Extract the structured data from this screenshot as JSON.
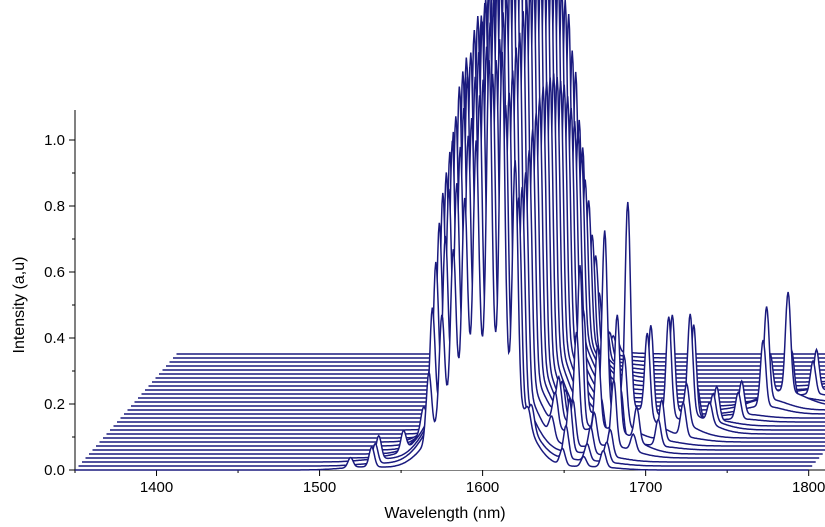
{
  "chart_data": {
    "type": "line",
    "style": "waterfall-3d",
    "xlabel": "Wavelength (nm)",
    "ylabel": "Intensity (a,u)",
    "xlim": [
      1350,
      1810
    ],
    "ylim": [
      0.0,
      1.1
    ],
    "x_ticks": [
      1400,
      1500,
      1600,
      1700,
      1800
    ],
    "y_ticks": [
      0.0,
      0.2,
      0.4,
      0.6,
      0.8,
      1.0
    ],
    "x_tick_labels": [
      "1400",
      "1500",
      "1600",
      "1700",
      "1800"
    ],
    "y_tick_labels": [
      "0.0",
      "0.2",
      "0.4",
      "0.6",
      "0.8",
      "1.0"
    ],
    "series_count": 30,
    "baseline_range": [
      1350,
      1800
    ],
    "line_color": "#1a1a7e",
    "grid": false,
    "legend": "none",
    "series": [
      {
        "peaks": [
          [
            1519,
            0.03
          ],
          [
            1532,
            0.06
          ],
          [
            1567,
            0.2
          ],
          [
            1575,
            0.31
          ],
          [
            1582,
            0.45
          ],
          [
            1589,
            0.55
          ],
          [
            1596,
            0.68
          ],
          [
            1604,
            0.9
          ],
          [
            1612,
            0.95
          ],
          [
            1620,
            0.7
          ],
          [
            1628,
            0.05
          ],
          [
            1649,
            0.05
          ],
          [
            1662,
            0.03
          ],
          [
            1674,
            0.05
          ]
        ]
      },
      {
        "peaks": [
          [
            1532,
            0.06
          ],
          [
            1567,
            0.34
          ],
          [
            1575,
            0.48
          ],
          [
            1582,
            0.58
          ],
          [
            1589,
            0.68
          ],
          [
            1596,
            0.78
          ],
          [
            1604,
            0.85
          ],
          [
            1612,
            0.8
          ],
          [
            1620,
            0.6
          ],
          [
            1628,
            0.06
          ],
          [
            1649,
            0.1
          ],
          [
            1662,
            0.05
          ],
          [
            1674,
            0.06
          ]
        ]
      },
      {
        "peaks": [
          [
            1532,
            0.07
          ],
          [
            1567,
            0.44
          ],
          [
            1575,
            0.58
          ],
          [
            1582,
            0.65
          ],
          [
            1589,
            0.7
          ],
          [
            1596,
            0.8
          ],
          [
            1604,
            0.87
          ],
          [
            1612,
            0.82
          ],
          [
            1620,
            0.62
          ],
          [
            1649,
            0.16
          ],
          [
            1662,
            0.08
          ],
          [
            1674,
            0.08
          ]
        ]
      },
      {
        "peaks": [
          [
            1545,
            0.06
          ],
          [
            1567,
            0.52
          ],
          [
            1575,
            0.68
          ],
          [
            1582,
            0.72
          ],
          [
            1589,
            0.78
          ],
          [
            1596,
            0.86
          ],
          [
            1604,
            0.9
          ],
          [
            1612,
            0.86
          ],
          [
            1620,
            0.64
          ],
          [
            1636,
            0.06
          ],
          [
            1649,
            0.14
          ],
          [
            1662,
            0.1
          ],
          [
            1674,
            0.2
          ],
          [
            1686,
            0.05
          ]
        ]
      },
      {
        "peaks": [
          [
            1555,
            0.06
          ],
          [
            1567,
            0.58
          ],
          [
            1575,
            0.72
          ],
          [
            1582,
            0.78
          ],
          [
            1589,
            0.82
          ],
          [
            1596,
            0.9
          ],
          [
            1604,
            0.95
          ],
          [
            1612,
            0.9
          ],
          [
            1620,
            0.68
          ],
          [
            1636,
            0.1
          ],
          [
            1649,
            0.3
          ],
          [
            1662,
            0.25
          ],
          [
            1674,
            0.35
          ],
          [
            1686,
            0.1
          ]
        ]
      },
      {
        "peaks": [
          [
            1567,
            0.62
          ],
          [
            1575,
            0.78
          ],
          [
            1582,
            0.82
          ],
          [
            1589,
            0.88
          ],
          [
            1596,
            0.93
          ],
          [
            1604,
            0.98
          ],
          [
            1612,
            0.92
          ],
          [
            1620,
            0.72
          ],
          [
            1636,
            0.12
          ],
          [
            1649,
            0.48
          ],
          [
            1662,
            0.1
          ],
          [
            1674,
            0.15
          ],
          [
            1697,
            0.08
          ]
        ]
      },
      {
        "peaks": [
          [
            1567,
            0.66
          ],
          [
            1575,
            0.8
          ],
          [
            1582,
            0.86
          ],
          [
            1589,
            0.92
          ],
          [
            1596,
            0.96
          ],
          [
            1604,
            1.02
          ],
          [
            1612,
            0.96
          ],
          [
            1620,
            0.75
          ],
          [
            1636,
            0.1
          ],
          [
            1649,
            0.32
          ],
          [
            1662,
            0.55
          ],
          [
            1674,
            0.2
          ],
          [
            1697,
            0.12
          ]
        ]
      },
      {
        "peaks": [
          [
            1567,
            0.7
          ],
          [
            1575,
            0.82
          ],
          [
            1582,
            0.88
          ],
          [
            1589,
            0.94
          ],
          [
            1596,
            0.98
          ],
          [
            1604,
            1.02
          ],
          [
            1612,
            0.98
          ],
          [
            1620,
            0.78
          ],
          [
            1636,
            0.08
          ],
          [
            1649,
            0.1
          ],
          [
            1662,
            0.18
          ],
          [
            1674,
            0.62
          ],
          [
            1686,
            0.25
          ],
          [
            1708,
            0.1
          ]
        ]
      },
      {
        "peaks": [
          [
            1575,
            0.84
          ],
          [
            1582,
            0.9
          ],
          [
            1589,
            0.96
          ],
          [
            1596,
            1.0
          ],
          [
            1604,
            1.04
          ],
          [
            1612,
            1.0
          ],
          [
            1620,
            0.8
          ],
          [
            1662,
            0.1
          ],
          [
            1686,
            0.28
          ],
          [
            1697,
            0.3
          ],
          [
            1708,
            0.12
          ]
        ]
      },
      {
        "peaks": [
          [
            1575,
            0.85
          ],
          [
            1582,
            0.92
          ],
          [
            1589,
            0.97
          ],
          [
            1596,
            1.01
          ],
          [
            1604,
            1.05
          ],
          [
            1612,
            1.02
          ],
          [
            1620,
            0.8
          ],
          [
            1697,
            0.3
          ],
          [
            1708,
            0.3
          ],
          [
            1720,
            0.06
          ]
        ]
      },
      {
        "peaks": [
          [
            1575,
            0.86
          ],
          [
            1582,
            0.93
          ],
          [
            1589,
            0.98
          ],
          [
            1596,
            1.02
          ],
          [
            1604,
            1.06
          ],
          [
            1612,
            1.02
          ],
          [
            1620,
            0.8
          ],
          [
            1708,
            0.28
          ],
          [
            1720,
            0.08
          ]
        ]
      },
      {
        "peaks": [
          [
            1582,
            0.94
          ],
          [
            1589,
            0.98
          ],
          [
            1596,
            1.03
          ],
          [
            1604,
            1.06
          ],
          [
            1612,
            1.02
          ],
          [
            1620,
            0.8
          ],
          [
            1708,
            0.1
          ],
          [
            1720,
            0.1
          ]
        ]
      },
      {
        "peaks": [
          [
            1582,
            0.94
          ],
          [
            1589,
            0.98
          ],
          [
            1596,
            1.03
          ],
          [
            1604,
            1.06
          ],
          [
            1612,
            1.02
          ],
          [
            1620,
            0.78
          ],
          [
            1731,
            0.08
          ]
        ]
      },
      {
        "peaks": [
          [
            1582,
            0.94
          ],
          [
            1589,
            0.98
          ],
          [
            1596,
            1.02
          ],
          [
            1604,
            1.06
          ],
          [
            1612,
            1.0
          ],
          [
            1620,
            0.76
          ],
          [
            1731,
            0.1
          ]
        ]
      },
      {
        "peaks": [
          [
            1589,
            0.98
          ],
          [
            1596,
            1.02
          ],
          [
            1604,
            1.06
          ],
          [
            1612,
            1.0
          ],
          [
            1620,
            0.74
          ],
          [
            1742,
            0.2
          ]
        ]
      },
      {
        "peaks": [
          [
            1589,
            0.97
          ],
          [
            1596,
            1.01
          ],
          [
            1604,
            1.05
          ],
          [
            1612,
            0.98
          ],
          [
            1620,
            0.7
          ],
          [
            1742,
            0.28
          ]
        ]
      },
      {
        "peaks": [
          [
            1589,
            0.96
          ],
          [
            1596,
            1.0
          ],
          [
            1604,
            1.04
          ],
          [
            1612,
            0.96
          ],
          [
            1620,
            0.66
          ],
          [
            1742,
            0.12
          ],
          [
            1753,
            0.3
          ]
        ]
      },
      {
        "peaks": [
          [
            1596,
            0.98
          ],
          [
            1604,
            1.02
          ],
          [
            1612,
            0.94
          ],
          [
            1620,
            0.62
          ],
          [
            1753,
            0.14
          ]
        ]
      },
      {
        "peaks": [
          [
            1596,
            0.96
          ],
          [
            1604,
            1.0
          ],
          [
            1612,
            0.9
          ],
          [
            1620,
            0.58
          ],
          [
            1764,
            0.1
          ]
        ]
      },
      {
        "peaks": [
          [
            1596,
            0.93
          ],
          [
            1604,
            0.96
          ],
          [
            1612,
            0.86
          ],
          [
            1620,
            0.52
          ],
          [
            1764,
            0.12
          ]
        ]
      },
      {
        "peaks": [
          [
            1604,
            0.92
          ],
          [
            1612,
            0.8
          ],
          [
            1620,
            0.46
          ],
          [
            1775,
            0.1
          ]
        ]
      },
      {
        "peaks": [
          [
            1604,
            0.88
          ],
          [
            1612,
            0.74
          ],
          [
            1620,
            0.4
          ],
          [
            1775,
            0.08
          ]
        ]
      },
      {
        "peaks": [
          [
            1612,
            0.68
          ],
          [
            1620,
            0.34
          ],
          [
            1786,
            0.08
          ]
        ]
      },
      {
        "peaks": [
          [
            1612,
            0.6
          ],
          [
            1620,
            0.28
          ],
          [
            1786,
            0.07
          ]
        ]
      },
      {
        "peaks": [
          [
            1620,
            0.22
          ],
          [
            1796,
            0.06
          ]
        ]
      },
      {
        "peaks": [
          [
            1620,
            0.16
          ],
          [
            1796,
            0.05
          ]
        ]
      },
      {
        "peaks": [
          [
            1620,
            0.12
          ]
        ]
      },
      {
        "peaks": [
          [
            1620,
            0.08
          ]
        ]
      },
      {
        "peaks": [
          [
            1620,
            0.06
          ]
        ]
      },
      {
        "peaks": [
          [
            1620,
            0.04
          ]
        ]
      }
    ]
  }
}
